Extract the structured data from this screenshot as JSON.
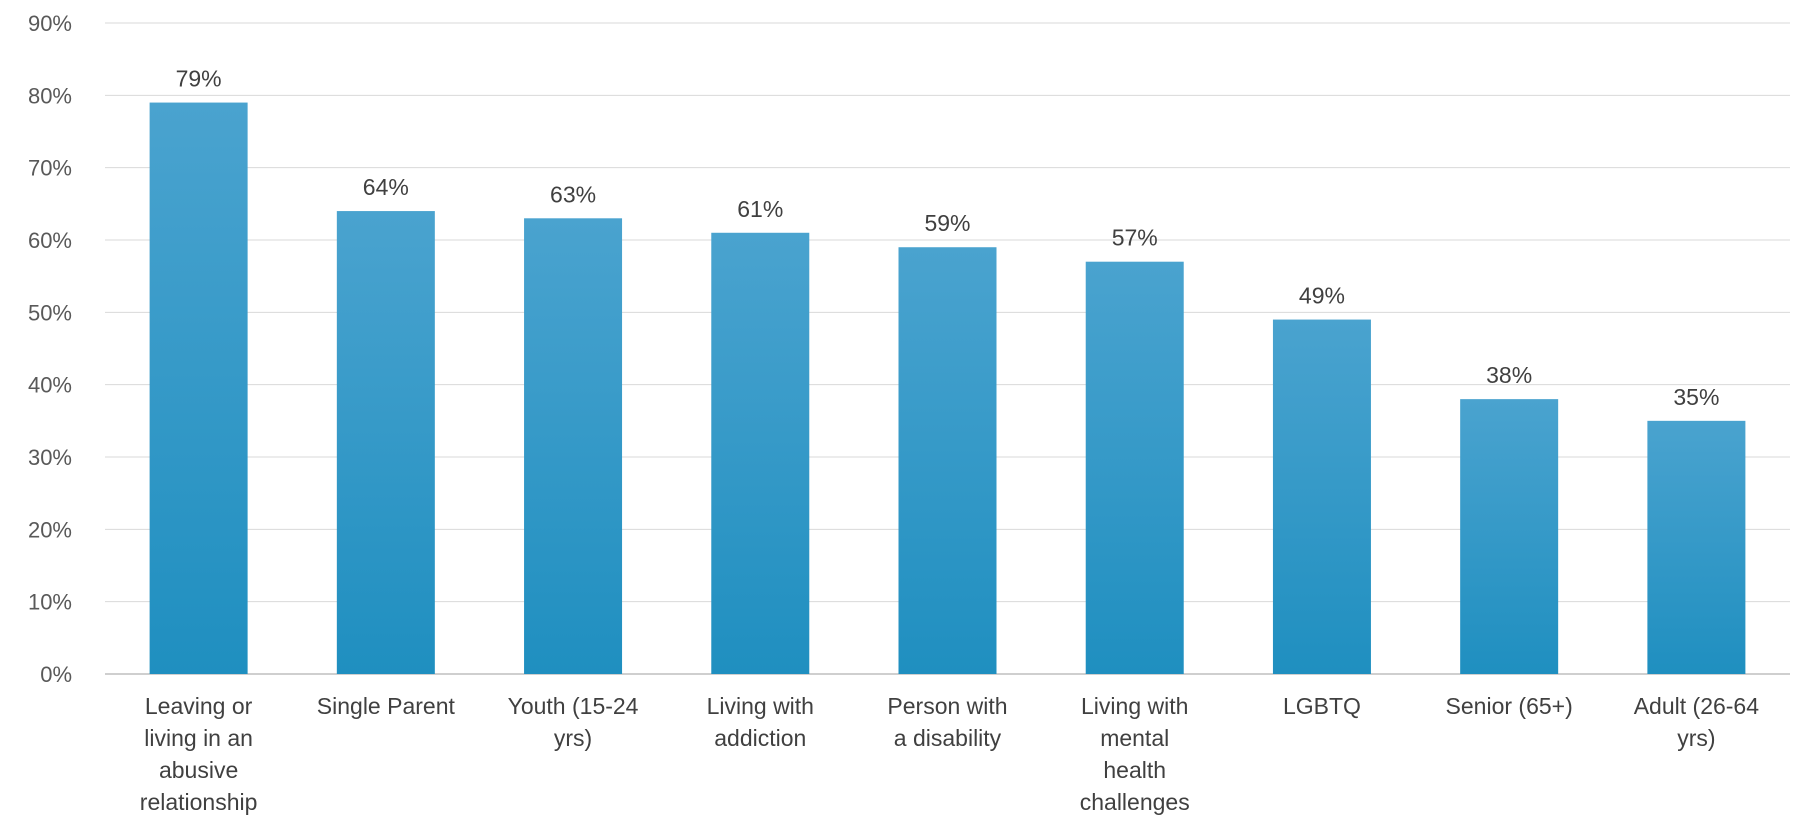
{
  "chart_data": {
    "type": "bar",
    "categories": [
      [
        "Leaving or",
        "living in an",
        "abusive",
        "relationship"
      ],
      [
        "Single Parent"
      ],
      [
        "Youth (15-24",
        "yrs)"
      ],
      [
        "Living with",
        "addiction"
      ],
      [
        "Person with",
        "a disability"
      ],
      [
        "Living with",
        "mental",
        "health",
        "challenges"
      ],
      [
        "LGBTQ"
      ],
      [
        "Senior (65+)"
      ],
      [
        "Adult (26-64",
        "yrs)"
      ]
    ],
    "values": [
      79,
      64,
      63,
      61,
      59,
      57,
      49,
      38,
      35
    ],
    "data_labels": [
      "79%",
      "64%",
      "63%",
      "61%",
      "59%",
      "57%",
      "49%",
      "38%",
      "35%"
    ],
    "y_ticks": [
      "0%",
      "10%",
      "20%",
      "30%",
      "40%",
      "50%",
      "60%",
      "70%",
      "80%",
      "90%"
    ],
    "ylim": [
      0,
      90
    ],
    "grid": true,
    "legend": "none",
    "colors": {
      "bar_top": "#4aa3cf",
      "bar_bottom": "#1f8fc0",
      "grid": "#d9d9d9"
    }
  }
}
